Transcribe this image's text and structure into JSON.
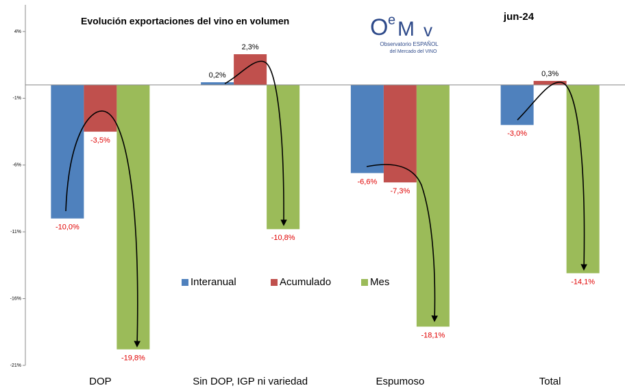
{
  "chart_data": {
    "type": "bar",
    "title": "Evolución exportaciones del vino en volumen",
    "period": "jun-24",
    "logo": {
      "letters": [
        "O",
        "e",
        "M",
        "v"
      ],
      "line1": "Observatorio ESPAÑOL",
      "line2": "del Mercado del VINO"
    },
    "categories": [
      "DOP",
      "Sin DOP, IGP ni variedad",
      "Espumoso",
      "Total"
    ],
    "series": [
      {
        "name": "Interanual",
        "color": "#4f81bd",
        "values": [
          -10.0,
          0.2,
          -6.6,
          -3.0
        ],
        "value_labels": [
          "-10,0%",
          "0,2%",
          "-6,6%",
          "-3,0%"
        ]
      },
      {
        "name": "Acumulado",
        "color": "#c0504d",
        "values": [
          -3.5,
          2.3,
          -7.3,
          0.3
        ],
        "value_labels": [
          "-3,5%",
          "2,3%",
          "-7,3%",
          "0,3%"
        ]
      },
      {
        "name": "Mes",
        "color": "#9bbb59",
        "values": [
          -19.8,
          -10.8,
          -18.1,
          -14.1
        ],
        "value_labels": [
          "-19,8%",
          "-10,8%",
          "-18,1%",
          "-14,1%"
        ]
      }
    ],
    "ylim": [
      -21,
      6
    ],
    "yticks": [
      {
        "value": 4,
        "label": "4%"
      },
      {
        "value": -1,
        "label": "-1%"
      },
      {
        "value": -6,
        "label": "-6%"
      },
      {
        "value": -11,
        "label": "-11%"
      },
      {
        "value": -16,
        "label": "-16%"
      },
      {
        "value": -21,
        "label": "-21%"
      }
    ],
    "legend": "center"
  }
}
